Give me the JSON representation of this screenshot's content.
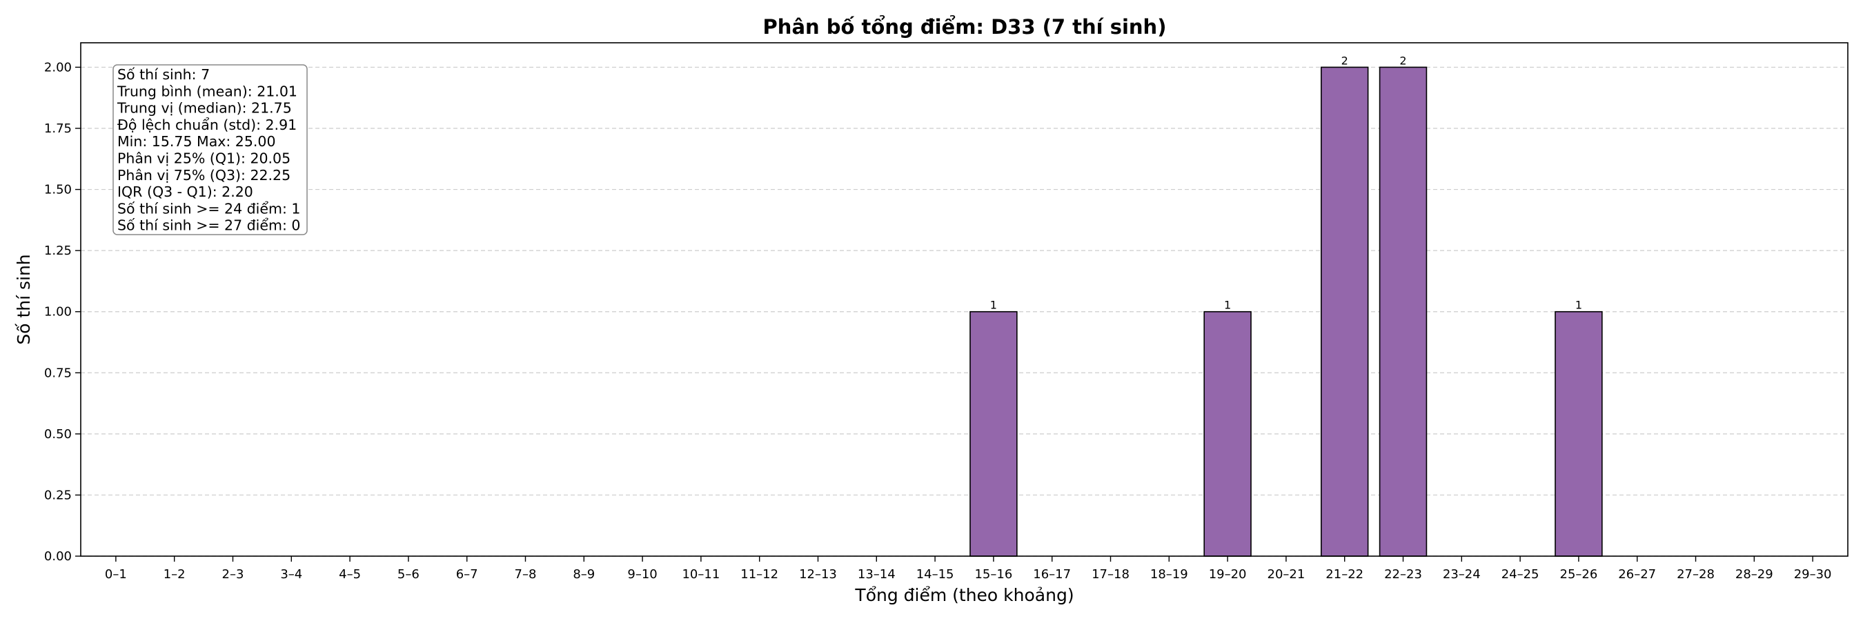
{
  "chart_data": {
    "type": "bar",
    "title": "Phân bố tổng điểm: D33 (7 thí sinh)",
    "xlabel": "Tổng điểm (theo khoảng)",
    "ylabel": "Số thí sinh",
    "ylim": [
      0,
      2.1
    ],
    "yticks": [
      "0.00",
      "0.25",
      "0.50",
      "0.75",
      "1.00",
      "1.25",
      "1.50",
      "1.75",
      "2.00"
    ],
    "grid": "y-dashed",
    "categories": [
      "0–1",
      "1–2",
      "2–3",
      "3–4",
      "4–5",
      "5–6",
      "6–7",
      "7–8",
      "8–9",
      "9–10",
      "10–11",
      "11–12",
      "12–13",
      "13–14",
      "14–15",
      "15–16",
      "16–17",
      "17–18",
      "18–19",
      "19–20",
      "20–21",
      "21–22",
      "22–23",
      "23–24",
      "24–25",
      "25–26",
      "26–27",
      "27–28",
      "28–29",
      "29–30"
    ],
    "values": [
      0,
      0,
      0,
      0,
      0,
      0,
      0,
      0,
      0,
      0,
      0,
      0,
      0,
      0,
      0,
      1,
      0,
      0,
      0,
      1,
      0,
      2,
      2,
      0,
      0,
      1,
      0,
      0,
      0,
      0
    ],
    "bar_labels": [
      "",
      "",
      "",
      "",
      "",
      "",
      "",
      "",
      "",
      "",
      "",
      "",
      "",
      "",
      "",
      "1",
      "",
      "",
      "",
      "1",
      "",
      "2",
      "2",
      "",
      "",
      "1",
      "",
      "",
      "",
      ""
    ],
    "colors": {
      "bar": "#9467ab",
      "edge": "#000000",
      "grid": "#cccccc"
    },
    "stats_box": {
      "placement": "top-left",
      "lines": [
        "Số thí sinh: 7",
        "Trung bình (mean): 21.01",
        "Trung vị (median): 21.75",
        "Độ lệch chuẩn (std): 2.91",
        "Min: 15.75   Max: 25.00",
        "Phân vị 25% (Q1): 20.05",
        "Phân vị 75% (Q3): 22.25",
        "IQR (Q3 - Q1): 2.20",
        "Số thí sinh >= 24 điểm: 1",
        "Số thí sinh >= 27 điểm: 0"
      ]
    }
  }
}
